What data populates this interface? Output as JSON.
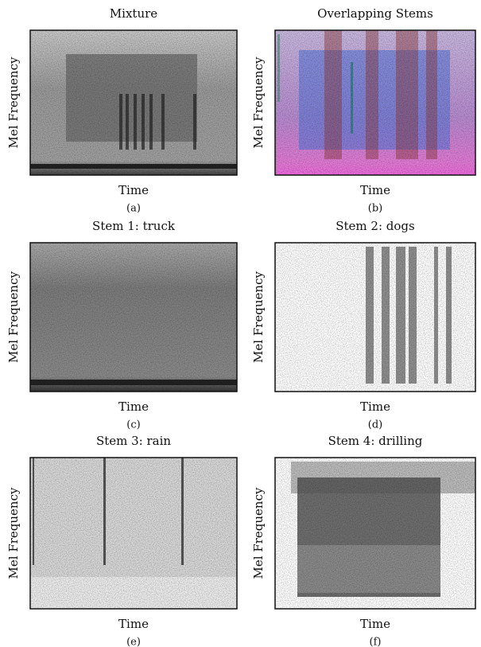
{
  "panels": [
    {
      "title": "Mixture",
      "xlabel": "Time",
      "ylabel": "Mel Frequency",
      "caption": "(a)"
    },
    {
      "title": "Overlapping Stems",
      "xlabel": "Time",
      "ylabel": "Mel Frequency",
      "caption": "(b)"
    },
    {
      "title": "Stem 1: truck",
      "xlabel": "Time",
      "ylabel": "Mel Frequency",
      "caption": "(c)"
    },
    {
      "title": "Stem 2: dogs",
      "xlabel": "Time",
      "ylabel": "Mel Frequency",
      "caption": "(d)"
    },
    {
      "title": "Stem 3: rain",
      "xlabel": "Time",
      "ylabel": "Mel Frequency",
      "caption": "(e)"
    },
    {
      "title": "Stem 4: drilling",
      "xlabel": "Time",
      "ylabel": "Mel Frequency",
      "caption": "(f)"
    }
  ]
}
